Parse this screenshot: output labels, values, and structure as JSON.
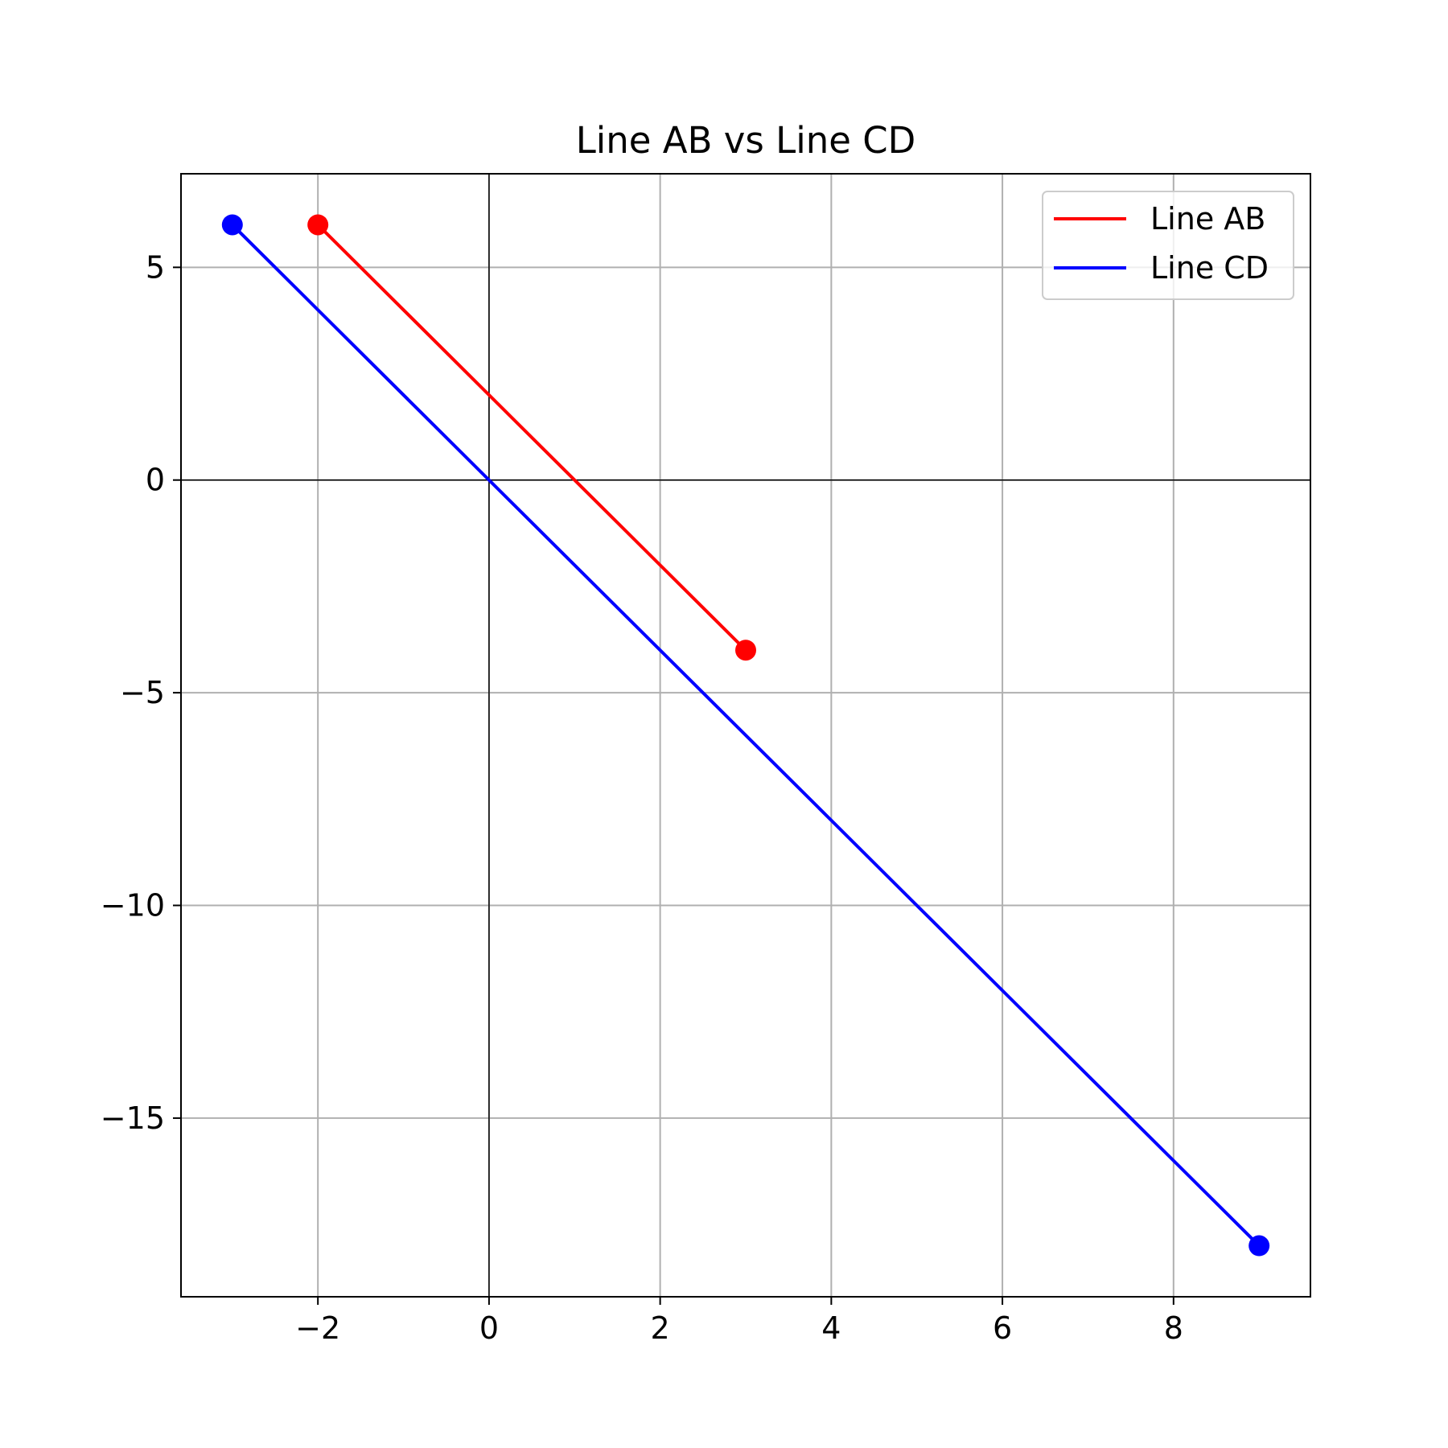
{
  "chart_data": {
    "type": "line",
    "title": "Line AB vs Line CD",
    "xlabel": "",
    "ylabel": "",
    "xlim": [
      -3.6,
      9.6
    ],
    "ylim": [
      -19.2,
      7.2
    ],
    "x_ticks": [
      -2,
      0,
      2,
      4,
      6,
      8
    ],
    "x_tick_labels": [
      "−2",
      "0",
      "2",
      "4",
      "6",
      "8"
    ],
    "y_ticks": [
      5,
      0,
      -5,
      -10,
      -15
    ],
    "y_tick_labels": [
      "5",
      "0",
      "−5",
      "−10",
      "−15"
    ],
    "grid": true,
    "zero_axes": true,
    "legend_position": "top-right",
    "series": [
      {
        "name": "Line AB",
        "color": "#ff0000",
        "points": [
          {
            "x": -2,
            "y": 6
          },
          {
            "x": 3,
            "y": -4
          }
        ]
      },
      {
        "name": "Line CD",
        "color": "#0000ff",
        "points": [
          {
            "x": -3,
            "y": 6
          },
          {
            "x": 9,
            "y": -18
          }
        ]
      }
    ]
  }
}
